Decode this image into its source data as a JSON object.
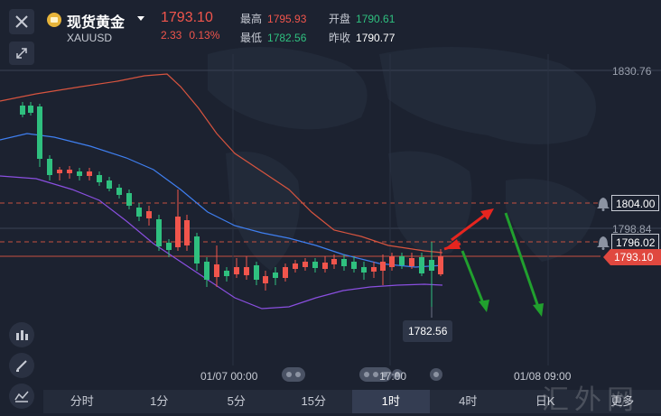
{
  "header": {
    "title": "现货黄金",
    "symbol": "XAUUSD",
    "price": "1793.10",
    "change_abs": "2.33",
    "change_pct": "0.13%",
    "stats": {
      "high_label": "最高",
      "high_value": "1795.93",
      "open_label": "开盘",
      "open_value": "1790.61",
      "low_label": "最低",
      "low_value": "1782.56",
      "prev_label": "昨收",
      "prev_value": "1790.77"
    }
  },
  "price_axis": {
    "level_top": "1830.76",
    "alert_1": "1804.00",
    "level_mid": "1798.84",
    "alert_2": "1796.02",
    "current": "1793.10"
  },
  "chart_tooltip": "1782.56",
  "time_axis": [
    "01/07 00:00",
    "17:00",
    "01/08 09:00"
  ],
  "timeframes": [
    "分时",
    "1分",
    "5分",
    "15分",
    "1时",
    "4时",
    "日K",
    "更多"
  ],
  "active_timeframe": "1时",
  "watermark": "汇外网",
  "colors": {
    "background": "#1c2230",
    "up": "#f1554c",
    "down": "#2fc07f",
    "upper_band": "#d7543f",
    "middle_band": "#3f7ff0",
    "lower_band": "#8a4fe0"
  },
  "icons": [
    "close-icon",
    "expand-icon",
    "gold-coin-icon",
    "dropdown-arrow-icon",
    "indicator-icon",
    "draw-pen-icon",
    "chart-type-icon",
    "bell-icon"
  ]
}
